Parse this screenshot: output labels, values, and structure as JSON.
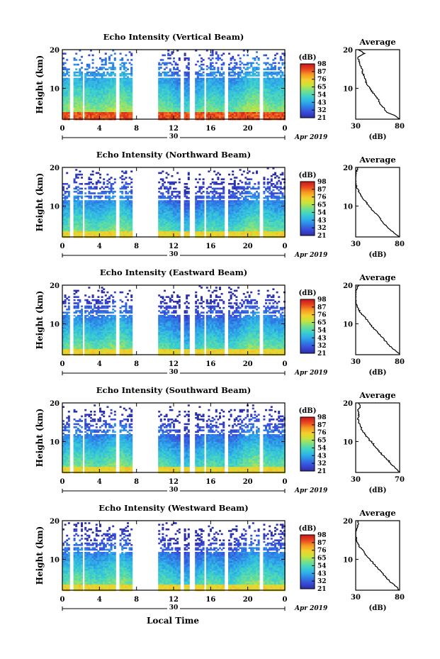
{
  "figure": {
    "xlabel": "Local Time",
    "date_label": "Apr 2019",
    "date_day": "30"
  },
  "colors": {
    "colormap": [
      "#2b2fa6",
      "#3a4ad8",
      "#2f7ee6",
      "#2fb2e8",
      "#3fd3c8",
      "#76e08a",
      "#c6e43c",
      "#f4d12c",
      "#f69a23",
      "#e8451f",
      "#c8161a"
    ]
  },
  "chart_data": [
    {
      "type": "heatmap",
      "title": "Echo Intensity (Vertical Beam)",
      "ylabel": "Height (km)",
      "x_ticks": [
        "0",
        "4",
        "8",
        "12",
        "16",
        "20",
        "0"
      ],
      "xlim": [
        0,
        24
      ],
      "y_ticks": [
        "10",
        "20"
      ],
      "ylim": [
        2,
        20
      ],
      "gaps_hours": [
        [
          0.7,
          1.0
        ],
        [
          2.0,
          2.3
        ],
        [
          5.7,
          6.0
        ],
        [
          7.4,
          10.3
        ],
        [
          12.7,
          13.0
        ],
        [
          13.7,
          14.2
        ],
        [
          15.2,
          15.5
        ],
        [
          17.4,
          17.7
        ],
        [
          21.2,
          21.5
        ]
      ],
      "colorbar_label": "(dB)",
      "colorbar_ticks": [
        "21",
        "32",
        "43",
        "54",
        "65",
        "76",
        "87",
        "98"
      ],
      "average": {
        "title": "Average",
        "xlabel": "(dB)",
        "x_ticks": [
          "30",
          "80"
        ],
        "xlim": [
          30,
          80
        ],
        "y_ticks": [
          "10",
          "20"
        ],
        "heights": [
          2,
          3,
          4,
          5,
          6,
          7,
          8,
          9,
          10,
          11,
          12,
          13,
          14,
          15,
          16,
          17,
          18,
          19,
          20
        ],
        "values": [
          80,
          74,
          64,
          62,
          57,
          56,
          53,
          49,
          46,
          43,
          41,
          40,
          38,
          37,
          35,
          34,
          32,
          40,
          33
        ]
      }
    },
    {
      "type": "heatmap",
      "title": "Echo Intensity (Northward Beam)",
      "ylabel": "Height (km)",
      "x_ticks": [
        "0",
        "4",
        "8",
        "12",
        "16",
        "20",
        "0"
      ],
      "xlim": [
        0,
        24
      ],
      "y_ticks": [
        "10",
        "20"
      ],
      "ylim": [
        2,
        20
      ],
      "gaps_hours": [
        [
          0.7,
          1.0
        ],
        [
          2.0,
          2.3
        ],
        [
          5.7,
          6.0
        ],
        [
          7.4,
          10.3
        ],
        [
          12.7,
          13.0
        ],
        [
          13.7,
          14.2
        ],
        [
          15.2,
          15.5
        ],
        [
          17.4,
          17.7
        ],
        [
          21.2,
          21.5
        ]
      ],
      "colorbar_label": "(dB)",
      "colorbar_ticks": [
        "21",
        "32",
        "43",
        "54",
        "65",
        "76",
        "87",
        "98"
      ],
      "average": {
        "title": "Average",
        "xlabel": "(dB)",
        "x_ticks": [
          "30",
          "80"
        ],
        "xlim": [
          30,
          80
        ],
        "y_ticks": [
          "10",
          "20"
        ],
        "heights": [
          2,
          3,
          4,
          5,
          6,
          7,
          8,
          9,
          10,
          11,
          12,
          13,
          14,
          15,
          16,
          17,
          18,
          19,
          20
        ],
        "values": [
          80,
          74,
          68,
          64,
          60,
          57,
          53,
          49,
          45,
          42,
          38,
          35,
          33,
          31,
          30,
          30,
          30,
          31,
          33
        ]
      }
    },
    {
      "type": "heatmap",
      "title": "Echo Intensity (Eastward Beam)",
      "ylabel": "Height (km)",
      "x_ticks": [
        "0",
        "4",
        "8",
        "12",
        "16",
        "20",
        "0"
      ],
      "xlim": [
        0,
        24
      ],
      "y_ticks": [
        "10",
        "20"
      ],
      "ylim": [
        2,
        20
      ],
      "gaps_hours": [
        [
          0.7,
          1.0
        ],
        [
          2.0,
          2.3
        ],
        [
          5.7,
          6.0
        ],
        [
          7.4,
          10.3
        ],
        [
          12.7,
          13.0
        ],
        [
          13.7,
          14.2
        ],
        [
          15.2,
          15.5
        ],
        [
          17.4,
          17.7
        ],
        [
          21.2,
          21.5
        ]
      ],
      "colorbar_label": "(dB)",
      "colorbar_ticks": [
        "21",
        "32",
        "43",
        "54",
        "65",
        "76",
        "87",
        "98"
      ],
      "average": {
        "title": "Average",
        "xlabel": "(dB)",
        "x_ticks": [
          "30",
          "80"
        ],
        "xlim": [
          30,
          80
        ],
        "y_ticks": [
          "10",
          "20"
        ],
        "heights": [
          2,
          3,
          4,
          5,
          6,
          7,
          8,
          9,
          10,
          11,
          12,
          13,
          14,
          15,
          16,
          17,
          18,
          19,
          20
        ],
        "values": [
          80,
          76,
          70,
          66,
          62,
          58,
          54,
          50,
          46,
          43,
          39,
          35,
          33,
          31,
          30,
          30,
          30,
          31,
          33
        ]
      }
    },
    {
      "type": "heatmap",
      "title": "Echo Intensity (Southward Beam)",
      "ylabel": "Height (km)",
      "x_ticks": [
        "0",
        "4",
        "8",
        "12",
        "16",
        "20",
        "0"
      ],
      "xlim": [
        0,
        24
      ],
      "y_ticks": [
        "10",
        "20"
      ],
      "ylim": [
        2,
        20
      ],
      "gaps_hours": [
        [
          0.7,
          1.0
        ],
        [
          2.0,
          2.3
        ],
        [
          5.7,
          6.0
        ],
        [
          7.4,
          10.3
        ],
        [
          12.7,
          13.0
        ],
        [
          13.7,
          14.2
        ],
        [
          15.2,
          15.5
        ],
        [
          17.4,
          17.7
        ],
        [
          21.2,
          21.5
        ]
      ],
      "colorbar_label": "(dB)",
      "colorbar_ticks": [
        "21",
        "32",
        "43",
        "54",
        "65",
        "76",
        "87",
        "98"
      ],
      "average": {
        "title": "Average",
        "xlabel": "(dB)",
        "x_ticks": [
          "30",
          "70"
        ],
        "xlim": [
          30,
          70
        ],
        "y_ticks": [
          "10",
          "20"
        ],
        "heights": [
          2,
          3,
          4,
          5,
          6,
          7,
          8,
          9,
          10,
          11,
          12,
          13,
          14,
          15,
          16,
          17,
          18,
          19,
          20
        ],
        "values": [
          70,
          67,
          63,
          60,
          56,
          53,
          50,
          47,
          44,
          41,
          38,
          36,
          34,
          33,
          32,
          33,
          32,
          34,
          33
        ]
      }
    },
    {
      "type": "heatmap",
      "title": "Echo Intensity (Westward Beam)",
      "ylabel": "Height (km)",
      "x_ticks": [
        "0",
        "4",
        "8",
        "12",
        "16",
        "20",
        "0"
      ],
      "xlim": [
        0,
        24
      ],
      "y_ticks": [
        "10",
        "20"
      ],
      "ylim": [
        2,
        20
      ],
      "gaps_hours": [
        [
          0.7,
          1.0
        ],
        [
          2.0,
          2.3
        ],
        [
          5.7,
          6.0
        ],
        [
          7.4,
          10.3
        ],
        [
          12.7,
          13.0
        ],
        [
          13.7,
          14.2
        ],
        [
          15.2,
          15.5
        ],
        [
          17.4,
          17.7
        ],
        [
          21.2,
          21.5
        ]
      ],
      "colorbar_label": "(dB)",
      "colorbar_ticks": [
        "21",
        "32",
        "43",
        "54",
        "65",
        "76",
        "87",
        "98"
      ],
      "average": {
        "title": "Average",
        "xlabel": "(dB)",
        "x_ticks": [
          "30",
          "80"
        ],
        "xlim": [
          30,
          80
        ],
        "y_ticks": [
          "10",
          "20"
        ],
        "heights": [
          2,
          3,
          4,
          5,
          6,
          7,
          8,
          9,
          10,
          11,
          12,
          13,
          14,
          15,
          16,
          17,
          18,
          19,
          20
        ],
        "values": [
          80,
          76,
          70,
          66,
          62,
          58,
          54,
          50,
          46,
          42,
          39,
          35,
          33,
          31,
          30,
          30,
          31,
          33,
          32
        ]
      }
    }
  ]
}
